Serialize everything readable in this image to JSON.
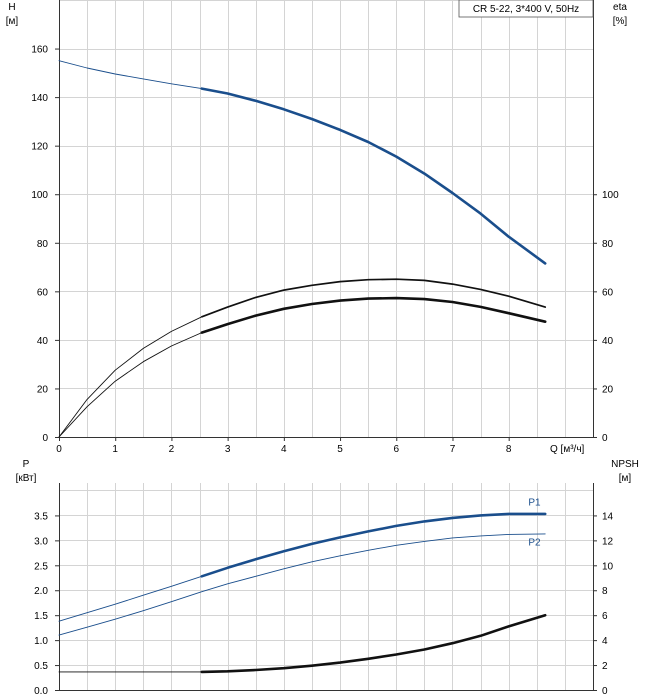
{
  "chart_data": [
    {
      "type": "line",
      "title": "CR 5-22, 3*400 V, 50Hz",
      "xlabel": "Q [м³/ч]",
      "ylabel": "H\n[м]",
      "ylabel_right": "eta\n[%]",
      "xlim": [
        0,
        9.5
      ],
      "ylim": [
        0,
        180
      ],
      "ylim_right": [
        0,
        180
      ],
      "x_ticks": [
        "0",
        "1",
        "2",
        "3",
        "4",
        "5",
        "6",
        "7",
        "8"
      ],
      "y_ticks": [
        "0",
        "20",
        "40",
        "60",
        "80",
        "100",
        "120",
        "140",
        "160"
      ],
      "y_ticks_right": [
        "0",
        "20",
        "40",
        "60",
        "80",
        "100"
      ],
      "grid": true,
      "series": [
        {
          "color": "#1a4e8c",
          "style": "thin",
          "x": [
            0,
            0.5,
            1,
            1.5,
            2,
            2.54
          ],
          "values": [
            155,
            152,
            149.5,
            147.5,
            145.5,
            143.5
          ]
        },
        {
          "color": "#1a4e8c",
          "style": "thick",
          "x": [
            2.54,
            3,
            3.5,
            4,
            4.5,
            5,
            5.5,
            6,
            6.5,
            7,
            7.5,
            8,
            8.65
          ],
          "values": [
            143.5,
            141.5,
            138.5,
            135,
            131,
            126.5,
            121.5,
            115.5,
            108.5,
            100.5,
            92,
            82.5,
            71.5
          ]
        },
        {
          "color": "#111111",
          "style": "thin",
          "x": [
            0,
            0.5,
            1,
            1.5,
            2,
            2.54
          ],
          "values": [
            0,
            15.5,
            27.5,
            36.5,
            43.5,
            49.5
          ]
        },
        {
          "color": "#111111",
          "style": "medium",
          "x": [
            2.54,
            3,
            3.5,
            4,
            4.5,
            5,
            5.5,
            6,
            6.5,
            7,
            7.5,
            8,
            8.65
          ],
          "values": [
            49.5,
            53.5,
            57.5,
            60.5,
            62.5,
            64,
            64.8,
            65,
            64.5,
            63,
            60.8,
            58,
            53.5
          ]
        },
        {
          "color": "#111111",
          "style": "thin",
          "x": [
            0,
            0.5,
            1,
            1.5,
            2,
            2.54
          ],
          "values": [
            0,
            12.5,
            23,
            31,
            37.5,
            43
          ]
        },
        {
          "color": "#111111",
          "style": "thick",
          "x": [
            2.54,
            3,
            3.5,
            4,
            4.5,
            5,
            5.5,
            6,
            6.5,
            7,
            7.5,
            8,
            8.65
          ],
          "values": [
            43,
            46.5,
            50,
            52.8,
            54.8,
            56.2,
            57,
            57.2,
            56.8,
            55.6,
            53.6,
            51,
            47.5
          ]
        }
      ]
    },
    {
      "type": "line",
      "xlabel": "",
      "ylabel": "P\n[кВт]",
      "ylabel_right": "NPSH\n[м]",
      "xlim": [
        0,
        9.5
      ],
      "ylim": [
        0,
        4.15
      ],
      "ylim_right": [
        0,
        16.6
      ],
      "y_ticks": [
        "0.0",
        "0.5",
        "1.0",
        "1.5",
        "2.0",
        "2.5",
        "3.0",
        "3.5"
      ],
      "y_ticks_right": [
        "0",
        "2",
        "4",
        "6",
        "8",
        "10",
        "12",
        "14"
      ],
      "grid": true,
      "series": [
        {
          "name": "P1",
          "color": "#1a4e8c",
          "style": "thin",
          "x": [
            0,
            0.5,
            1,
            1.5,
            2,
            2.54
          ],
          "values": [
            1.38,
            1.55,
            1.72,
            1.9,
            2.08,
            2.28
          ]
        },
        {
          "name": "P1",
          "color": "#1a4e8c",
          "style": "thick",
          "x": [
            2.54,
            3,
            3.5,
            4,
            4.5,
            5,
            5.5,
            6,
            6.5,
            7,
            7.5,
            8,
            8.65
          ],
          "values": [
            2.28,
            2.45,
            2.62,
            2.78,
            2.93,
            3.06,
            3.18,
            3.29,
            3.38,
            3.45,
            3.5,
            3.53,
            3.53
          ]
        },
        {
          "name": "P2",
          "color": "#1a4e8c",
          "style": "thin",
          "x": [
            0,
            0.5,
            1,
            1.5,
            2,
            2.54,
            3,
            3.5,
            4,
            4.5,
            5,
            5.5,
            6,
            6.5,
            7,
            7.5,
            8,
            8.65
          ],
          "values": [
            1.1,
            1.26,
            1.42,
            1.59,
            1.77,
            1.97,
            2.13,
            2.28,
            2.43,
            2.57,
            2.69,
            2.8,
            2.9,
            2.98,
            3.05,
            3.09,
            3.12,
            3.13
          ]
        },
        {
          "color": "#111111",
          "style": "thin",
          "x": [
            0,
            0.5,
            1,
            1.5,
            2,
            2.54
          ],
          "values": [
            1.45,
            1.45,
            1.45,
            1.45,
            1.45,
            1.45
          ]
        },
        {
          "color": "#111111",
          "style": "thick",
          "x": [
            2.54,
            3,
            3.5,
            4,
            4.5,
            5,
            5.5,
            6,
            6.5,
            7,
            7.5,
            8,
            8.65
          ],
          "values": [
            1.45,
            1.5,
            1.6,
            1.75,
            1.95,
            2.2,
            2.5,
            2.85,
            3.25,
            3.75,
            4.35,
            5.1,
            6.0
          ],
          "axis": "right"
        }
      ],
      "series_labels": [
        {
          "text": "P1",
          "x": 8.35,
          "y": 3.7
        },
        {
          "text": "P2",
          "x": 8.35,
          "y": 2.9
        }
      ]
    }
  ]
}
